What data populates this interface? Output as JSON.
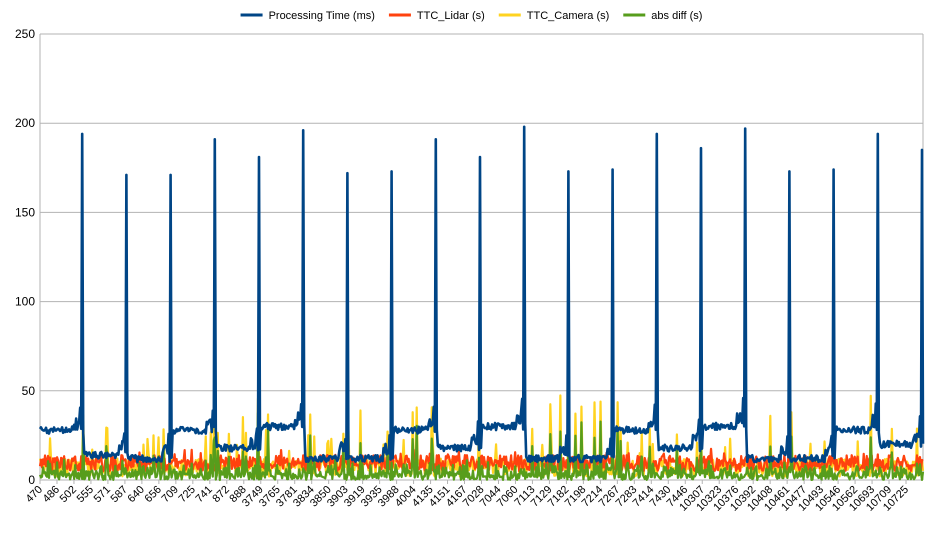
{
  "colors": {
    "processing_time": "#004586",
    "ttc_lidar": "#ff420e",
    "ttc_camera": "#ffd320",
    "abs_diff": "#579d1c",
    "grid": "#b3b3b3",
    "axis": "#b3b3b3"
  },
  "chart_data": {
    "type": "line",
    "title": "",
    "xlabel": "",
    "ylabel": "",
    "ylim": [
      0,
      250
    ],
    "yticks": [
      0,
      50,
      100,
      150,
      200,
      250
    ],
    "grid": true,
    "legend_position": "top",
    "x_tick_labels": [
      "470",
      "486",
      "502",
      "555",
      "571",
      "587",
      "640",
      "656",
      "709",
      "725",
      "741",
      "872",
      "888",
      "3749",
      "3765",
      "3781",
      "3834",
      "3850",
      "3903",
      "3919",
      "3935",
      "3988",
      "4004",
      "4135",
      "4151",
      "4167",
      "7028",
      "7044",
      "7060",
      "7113",
      "7129",
      "7182",
      "7198",
      "7214",
      "7267",
      "7283",
      "7414",
      "7430",
      "7446",
      "10307",
      "10323",
      "10376",
      "10392",
      "10408",
      "10461",
      "10477",
      "10493",
      "10546",
      "10562",
      "10693",
      "10709",
      "10725"
    ],
    "series": [
      {
        "name": "Processing Time (ms)",
        "color_key": "processing_time",
        "segments": [
          {
            "baseline": 28,
            "peak": 194
          },
          {
            "baseline": 14,
            "peak": 171
          },
          {
            "baseline": 12,
            "peak": 171
          },
          {
            "baseline": 28,
            "peak": 191
          },
          {
            "baseline": 18,
            "peak": 181
          },
          {
            "baseline": 30,
            "peak": 196
          },
          {
            "baseline": 12,
            "peak": 172
          },
          {
            "baseline": 12,
            "peak": 173
          },
          {
            "baseline": 28,
            "peak": 191
          },
          {
            "baseline": 18,
            "peak": 181
          },
          {
            "baseline": 30,
            "peak": 198
          },
          {
            "baseline": 12,
            "peak": 173
          },
          {
            "baseline": 12,
            "peak": 174
          },
          {
            "baseline": 28,
            "peak": 194
          },
          {
            "baseline": 18,
            "peak": 186
          },
          {
            "baseline": 30,
            "peak": 197
          },
          {
            "baseline": 12,
            "peak": 173
          },
          {
            "baseline": 12,
            "peak": 174
          },
          {
            "baseline": 28,
            "peak": 194
          },
          {
            "baseline": 20,
            "peak": 185
          }
        ]
      },
      {
        "name": "TTC_Lidar (s)",
        "color_key": "ttc_lidar",
        "typical_range": [
          5,
          15
        ]
      },
      {
        "name": "TTC_Camera (s)",
        "color_key": "ttc_camera",
        "typical_range": [
          0,
          48
        ],
        "spikes": [
          81,
          81,
          81,
          81,
          81,
          81
        ]
      },
      {
        "name": "abs diff (s)",
        "color_key": "abs_diff",
        "typical_range": [
          0,
          40
        ],
        "spikes": [
          68,
          68,
          68,
          68,
          68,
          68
        ]
      }
    ]
  }
}
